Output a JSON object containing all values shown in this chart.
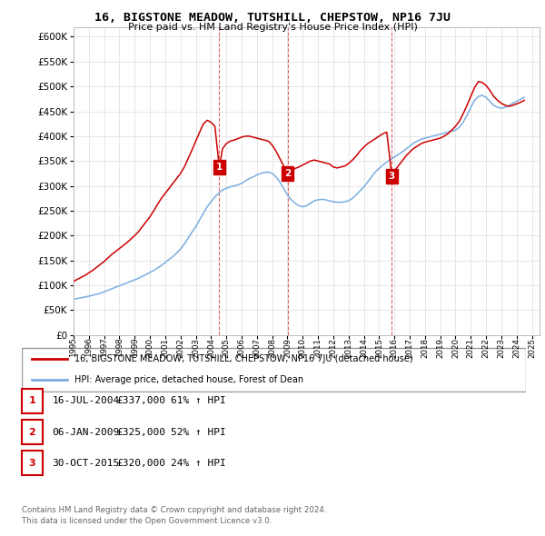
{
  "title": "16, BIGSTONE MEADOW, TUTSHILL, CHEPSTOW, NP16 7JU",
  "subtitle": "Price paid vs. HM Land Registry's House Price Index (HPI)",
  "legend_line1": "16, BIGSTONE MEADOW, TUTSHILL, CHEPSTOW, NP16 7JU (detached house)",
  "legend_line2": "HPI: Average price, detached house, Forest of Dean",
  "sale1_date": "16-JUL-2004",
  "sale1_price": "£337,000",
  "sale1_hpi": "61% ↑ HPI",
  "sale2_date": "06-JAN-2009",
  "sale2_price": "£325,000",
  "sale2_hpi": "52% ↑ HPI",
  "sale3_date": "30-OCT-2015",
  "sale3_price": "£320,000",
  "sale3_hpi": "24% ↑ HPI",
  "footer1": "Contains HM Land Registry data © Crown copyright and database right 2024.",
  "footer2": "This data is licensed under the Open Government Licence v3.0.",
  "red_color": "#cc0000",
  "blue_color": "#7aade0",
  "background_color": "#ffffff",
  "grid_color": "#dddddd",
  "ylim_min": 0,
  "ylim_max": 620000,
  "xmin": 1995,
  "xmax": 2025.5,
  "hpi_years": [
    1995,
    1995.25,
    1995.5,
    1995.75,
    1996,
    1996.25,
    1996.5,
    1996.75,
    1997,
    1997.25,
    1997.5,
    1997.75,
    1998,
    1998.25,
    1998.5,
    1998.75,
    1999,
    1999.25,
    1999.5,
    1999.75,
    2000,
    2000.25,
    2000.5,
    2000.75,
    2001,
    2001.25,
    2001.5,
    2001.75,
    2002,
    2002.25,
    2002.5,
    2002.75,
    2003,
    2003.25,
    2003.5,
    2003.75,
    2004,
    2004.25,
    2004.5,
    2004.75,
    2005,
    2005.25,
    2005.5,
    2005.75,
    2006,
    2006.25,
    2006.5,
    2006.75,
    2007,
    2007.25,
    2007.5,
    2007.75,
    2008,
    2008.25,
    2008.5,
    2008.75,
    2009,
    2009.25,
    2009.5,
    2009.75,
    2010,
    2010.25,
    2010.5,
    2010.75,
    2011,
    2011.25,
    2011.5,
    2011.75,
    2012,
    2012.25,
    2012.5,
    2012.75,
    2013,
    2013.25,
    2013.5,
    2013.75,
    2014,
    2014.25,
    2014.5,
    2014.75,
    2015,
    2015.25,
    2015.5,
    2015.75,
    2016,
    2016.25,
    2016.5,
    2016.75,
    2017,
    2017.25,
    2017.5,
    2017.75,
    2018,
    2018.25,
    2018.5,
    2018.75,
    2019,
    2019.25,
    2019.5,
    2019.75,
    2020,
    2020.25,
    2020.5,
    2020.75,
    2021,
    2021.25,
    2021.5,
    2021.75,
    2022,
    2022.25,
    2022.5,
    2022.75,
    2023,
    2023.25,
    2023.5,
    2023.75,
    2024,
    2024.25,
    2024.5
  ],
  "hpi_values": [
    72000,
    73500,
    75000,
    76500,
    78000,
    80000,
    82000,
    84000,
    87000,
    90000,
    93000,
    96000,
    99000,
    102000,
    105000,
    108000,
    111000,
    114000,
    118000,
    122000,
    126000,
    130000,
    135000,
    140000,
    146000,
    152000,
    158000,
    165000,
    173000,
    183000,
    195000,
    207000,
    218000,
    232000,
    245000,
    258000,
    268000,
    278000,
    285000,
    292000,
    295000,
    298000,
    300000,
    302000,
    305000,
    310000,
    315000,
    318000,
    322000,
    325000,
    327000,
    328000,
    325000,
    318000,
    308000,
    295000,
    282000,
    272000,
    265000,
    260000,
    258000,
    260000,
    265000,
    270000,
    272000,
    273000,
    272000,
    270000,
    268000,
    267000,
    267000,
    268000,
    270000,
    275000,
    282000,
    290000,
    298000,
    308000,
    318000,
    328000,
    335000,
    342000,
    348000,
    353000,
    358000,
    363000,
    368000,
    374000,
    380000,
    386000,
    390000,
    394000,
    396000,
    398000,
    400000,
    402000,
    404000,
    406000,
    408000,
    410000,
    412000,
    418000,
    428000,
    442000,
    458000,
    472000,
    480000,
    482000,
    478000,
    470000,
    462000,
    458000,
    456000,
    458000,
    462000,
    466000,
    470000,
    474000,
    478000
  ],
  "red_years": [
    1995,
    1995.25,
    1995.5,
    1995.75,
    1996,
    1996.25,
    1996.5,
    1996.75,
    1997,
    1997.25,
    1997.5,
    1997.75,
    1998,
    1998.25,
    1998.5,
    1998.75,
    1999,
    1999.25,
    1999.5,
    1999.75,
    2000,
    2000.25,
    2000.5,
    2000.75,
    2001,
    2001.25,
    2001.5,
    2001.75,
    2002,
    2002.25,
    2002.5,
    2002.75,
    2003,
    2003.25,
    2003.5,
    2003.75,
    2004,
    2004.25,
    2004.54,
    2004.75,
    2005,
    2005.25,
    2005.5,
    2005.75,
    2006,
    2006.25,
    2006.5,
    2006.75,
    2007,
    2007.25,
    2007.5,
    2007.75,
    2008,
    2008.25,
    2008.5,
    2008.75,
    2009.02,
    2009.25,
    2009.5,
    2009.75,
    2010,
    2010.25,
    2010.5,
    2010.75,
    2011,
    2011.25,
    2011.5,
    2011.75,
    2012,
    2012.25,
    2012.5,
    2012.75,
    2013,
    2013.25,
    2013.5,
    2013.75,
    2014,
    2014.25,
    2014.5,
    2014.75,
    2015,
    2015.25,
    2015.5,
    2015.83,
    2016,
    2016.25,
    2016.5,
    2016.75,
    2017,
    2017.25,
    2017.5,
    2017.75,
    2018,
    2018.25,
    2018.5,
    2018.75,
    2019,
    2019.25,
    2019.5,
    2019.75,
    2020,
    2020.25,
    2020.5,
    2020.75,
    2021,
    2021.25,
    2021.5,
    2021.75,
    2022,
    2022.25,
    2022.5,
    2022.75,
    2023,
    2023.25,
    2023.5,
    2023.75,
    2024,
    2024.25,
    2024.5
  ],
  "red_values": [
    108000,
    112000,
    116000,
    120000,
    125000,
    130000,
    136000,
    142000,
    148000,
    155000,
    162000,
    168000,
    174000,
    180000,
    186000,
    193000,
    200000,
    208000,
    218000,
    228000,
    238000,
    250000,
    263000,
    275000,
    285000,
    295000,
    305000,
    315000,
    325000,
    338000,
    355000,
    372000,
    390000,
    408000,
    425000,
    432000,
    428000,
    420000,
    337000,
    375000,
    385000,
    390000,
    392000,
    395000,
    398000,
    400000,
    400000,
    398000,
    396000,
    394000,
    392000,
    390000,
    382000,
    370000,
    355000,
    340000,
    325000,
    330000,
    335000,
    338000,
    342000,
    346000,
    350000,
    352000,
    350000,
    348000,
    346000,
    344000,
    338000,
    336000,
    338000,
    340000,
    345000,
    352000,
    360000,
    370000,
    378000,
    385000,
    390000,
    395000,
    400000,
    405000,
    408000,
    320000,
    330000,
    340000,
    350000,
    360000,
    368000,
    375000,
    380000,
    385000,
    388000,
    390000,
    392000,
    394000,
    396000,
    400000,
    405000,
    412000,
    420000,
    430000,
    445000,
    462000,
    480000,
    498000,
    510000,
    508000,
    502000,
    492000,
    480000,
    472000,
    466000,
    462000,
    460000,
    462000,
    465000,
    468000,
    472000
  ],
  "sales": [
    {
      "year": 2004.54,
      "price": 337000,
      "label": "1"
    },
    {
      "year": 2009.02,
      "price": 325000,
      "label": "2"
    },
    {
      "year": 2015.83,
      "price": 320000,
      "label": "3"
    }
  ]
}
